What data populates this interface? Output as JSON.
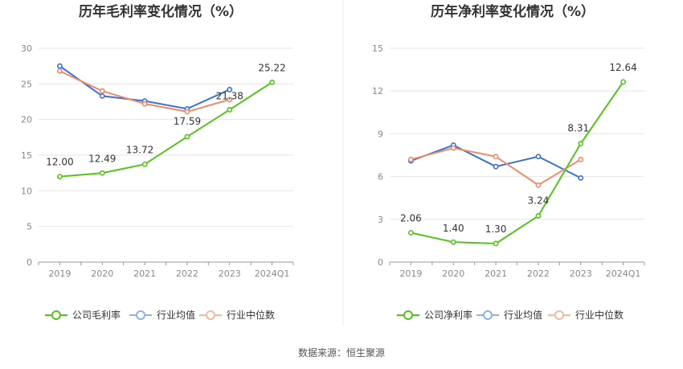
{
  "colors": {
    "company": "#52c41a",
    "industry_avg": "#3a6fd8",
    "industry_median": "#f0896a",
    "legend_avg": "#8fb0f0",
    "legend_median": "#f7b89f"
  },
  "source_text": "数据来源：恒生聚源",
  "chart_data": [
    {
      "type": "line",
      "title": "历年毛利率变化情况（%）",
      "categories": [
        "2019",
        "2020",
        "2021",
        "2022",
        "2023",
        "2024Q1"
      ],
      "ylim": [
        0,
        30
      ],
      "yticks": [
        "0",
        "5",
        "10",
        "15",
        "20",
        "25",
        "30"
      ],
      "grid": true,
      "legend_position": "bottom",
      "series": [
        {
          "name": "公司毛利率",
          "key": "company",
          "values": [
            12.0,
            12.49,
            13.72,
            17.59,
            21.38,
            25.22
          ],
          "labels": [
            "12.00",
            "12.49",
            "13.72",
            "17.59",
            "21.38",
            "25.22"
          ]
        },
        {
          "name": "行业均值",
          "key": "industry_avg",
          "values": [
            27.5,
            23.3,
            22.6,
            21.5,
            24.2,
            null
          ]
        },
        {
          "name": "行业中位数",
          "key": "industry_median",
          "values": [
            26.8,
            24.0,
            22.2,
            21.1,
            22.8,
            null
          ]
        }
      ]
    },
    {
      "type": "line",
      "title": "历年净利率变化情况（%）",
      "categories": [
        "2019",
        "2020",
        "2021",
        "2022",
        "2023",
        "2024Q1"
      ],
      "ylim": [
        0,
        15
      ],
      "yticks": [
        "0",
        "3",
        "6",
        "9",
        "12",
        "15"
      ],
      "grid": true,
      "legend_position": "bottom",
      "series": [
        {
          "name": "公司净利率",
          "key": "company",
          "values": [
            2.06,
            1.4,
            1.3,
            3.24,
            8.31,
            12.64
          ],
          "labels": [
            "2.06",
            "1.40",
            "1.30",
            "3.24",
            "8.31",
            "12.64"
          ]
        },
        {
          "name": "行业均值",
          "key": "industry_avg",
          "values": [
            7.1,
            8.2,
            6.7,
            7.4,
            5.9,
            null
          ]
        },
        {
          "name": "行业中位数",
          "key": "industry_median",
          "values": [
            7.2,
            8.0,
            7.4,
            5.4,
            7.2,
            null
          ]
        }
      ]
    }
  ]
}
